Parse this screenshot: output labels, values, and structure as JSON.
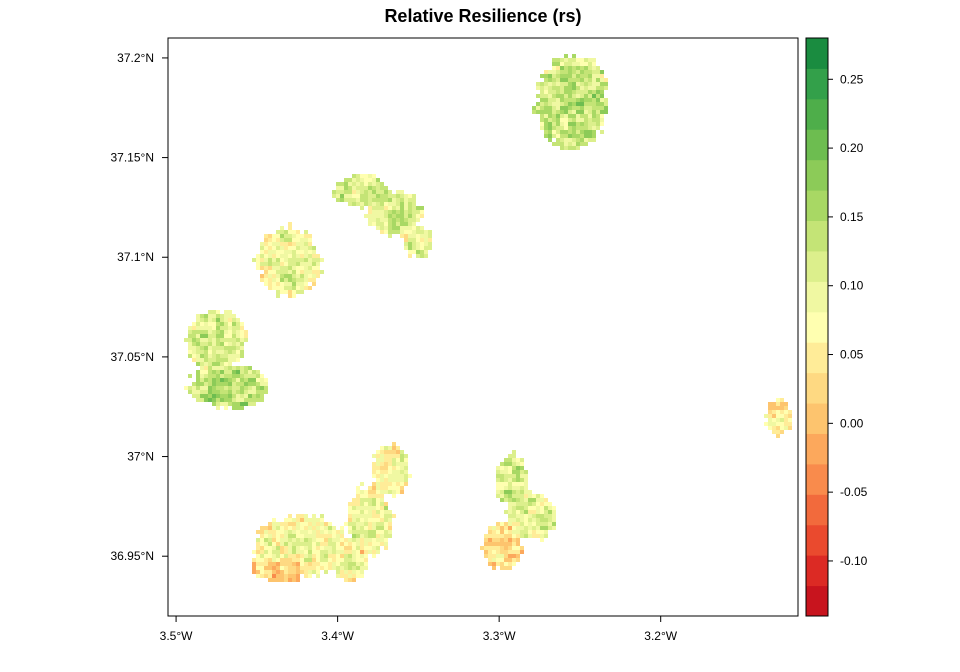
{
  "title": "Relative Resilience (rs)",
  "map": {
    "x_ticks": [
      "3.5°W",
      "3.4°W",
      "3.3°W",
      "3.2°W"
    ],
    "y_ticks": [
      "37.2°N",
      "37.15°N",
      "37.1°N",
      "37.05°N",
      "37°N",
      "36.95°N"
    ],
    "lon_range": [
      -3.505,
      -3.115
    ],
    "lat_range": [
      36.92,
      37.21
    ]
  },
  "legend": {
    "labels": [
      "0.25",
      "0.20",
      "0.15",
      "0.10",
      "0.05",
      "0.00",
      "-0.05",
      "-0.10"
    ],
    "values": [
      0.25,
      0.2,
      0.15,
      0.1,
      0.05,
      0.0,
      -0.05,
      -0.1
    ],
    "range": [
      -0.14,
      0.28
    ],
    "colors": [
      "#c8141e",
      "#dc2a24",
      "#ea4a2e",
      "#f26a3c",
      "#f98b4c",
      "#fca85c",
      "#fdc46e",
      "#fed982",
      "#ffec98",
      "#ffffb0",
      "#f0f8a2",
      "#dcef8c",
      "#c4e476",
      "#a8d864",
      "#8ccb58",
      "#6dbd50",
      "#4eae4a",
      "#33a04a",
      "#1a8c40"
    ]
  },
  "patches": [
    {
      "lon": -3.255,
      "lat": 37.178,
      "rx": 0.022,
      "ry": 0.024,
      "base": 0.13
    },
    {
      "lon": -3.385,
      "lat": 37.133,
      "rx": 0.018,
      "ry": 0.008,
      "base": 0.12
    },
    {
      "lon": -3.365,
      "lat": 37.122,
      "rx": 0.017,
      "ry": 0.011,
      "base": 0.11
    },
    {
      "lon": -3.35,
      "lat": 37.108,
      "rx": 0.009,
      "ry": 0.008,
      "base": 0.1
    },
    {
      "lon": -3.43,
      "lat": 37.098,
      "rx": 0.02,
      "ry": 0.017,
      "base": 0.09
    },
    {
      "lon": -3.475,
      "lat": 37.058,
      "rx": 0.018,
      "ry": 0.016,
      "base": 0.12
    },
    {
      "lon": -3.467,
      "lat": 37.035,
      "rx": 0.025,
      "ry": 0.011,
      "base": 0.14
    },
    {
      "lon": -3.367,
      "lat": 36.993,
      "rx": 0.012,
      "ry": 0.013,
      "base": 0.08
    },
    {
      "lon": -3.38,
      "lat": 36.968,
      "rx": 0.014,
      "ry": 0.018,
      "base": 0.09
    },
    {
      "lon": -3.393,
      "lat": 36.947,
      "rx": 0.012,
      "ry": 0.01,
      "base": 0.07
    },
    {
      "lon": -3.422,
      "lat": 36.955,
      "rx": 0.03,
      "ry": 0.015,
      "base": 0.08
    },
    {
      "lon": -3.435,
      "lat": 36.945,
      "rx": 0.018,
      "ry": 0.008,
      "base": 0.03
    },
    {
      "lon": -3.292,
      "lat": 36.988,
      "rx": 0.01,
      "ry": 0.013,
      "base": 0.12
    },
    {
      "lon": -3.28,
      "lat": 36.97,
      "rx": 0.016,
      "ry": 0.012,
      "base": 0.1
    },
    {
      "lon": -3.298,
      "lat": 36.955,
      "rx": 0.012,
      "ry": 0.012,
      "base": 0.04
    },
    {
      "lon": -3.127,
      "lat": 37.02,
      "rx": 0.008,
      "ry": 0.009,
      "base": 0.05
    }
  ]
}
